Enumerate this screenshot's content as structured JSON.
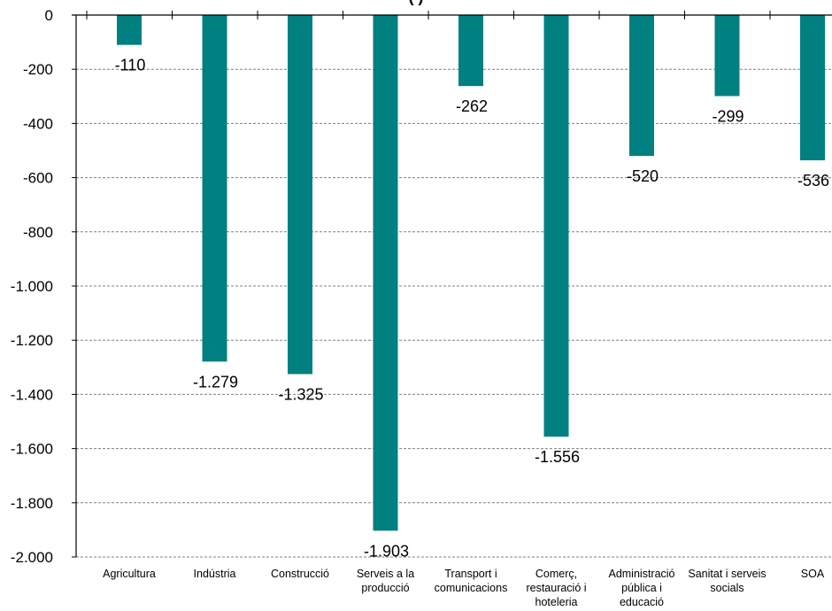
{
  "chart_data": {
    "type": "bar",
    "title": "(                   )                                          ",
    "categories": [
      "Agricultura",
      "Indústria",
      "Construcció",
      "Serveis a la producció",
      "Transport i comunicacions",
      "Comerç, restauració i hoteleria",
      "Administració pública i educació",
      "Sanitat i serveis socials",
      "SOA"
    ],
    "category_lines": [
      [
        "Agricultura"
      ],
      [
        "Indústria"
      ],
      [
        "Construcció"
      ],
      [
        "Serveis a la",
        "producció"
      ],
      [
        "Transport i",
        "comunicacions"
      ],
      [
        "Comerç,",
        "restauració i",
        "hoteleria"
      ],
      [
        "Administració",
        "pública i",
        "educació"
      ],
      [
        "Sanitat i serveis",
        "socials"
      ],
      [
        "SOA"
      ]
    ],
    "values": [
      -110,
      -1279,
      -1325,
      -1903,
      -262,
      -1556,
      -520,
      -299,
      -536
    ],
    "value_labels": [
      "-110",
      "-1.279",
      "-1.325",
      "-1.903",
      "-262",
      "-1.556",
      "-520",
      "-299",
      "-536"
    ],
    "ylim": [
      -2000,
      0
    ],
    "yticks": [
      0,
      -200,
      -400,
      -600,
      -800,
      -1000,
      -1200,
      -1400,
      -1600,
      -1800,
      -2000
    ],
    "ytick_labels": [
      "0",
      "-200",
      "-400",
      "-600",
      "-800",
      "-1.000",
      "-1.200",
      "-1.400",
      "-1.600",
      "-1.800",
      "-2.000"
    ],
    "xlabel": "",
    "ylabel": "",
    "grid": true,
    "bar_color": "#008080",
    "grid_color": "#808080"
  }
}
